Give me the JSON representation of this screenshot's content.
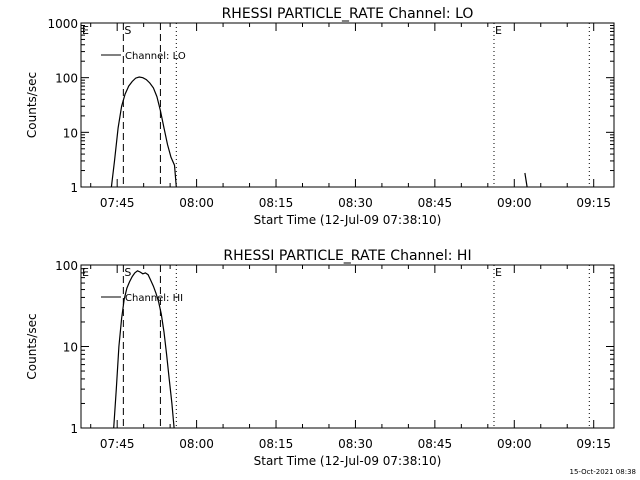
{
  "footer_timestamp": "15-Oct-2021 08:38",
  "chart_data": [
    {
      "type": "line",
      "title": "RHESSI PARTICLE_RATE Channel: LO",
      "xlabel": "Start Time (12-Jul-09 07:38:10)",
      "ylabel": "Counts/sec",
      "yscale": "log",
      "ylim": [
        1,
        1000
      ],
      "xlim": [
        "07:38:10",
        "09:18:50"
      ],
      "yticks": [
        "1",
        "10",
        "100",
        "1000"
      ],
      "xticks": [
        "07:45",
        "08:00",
        "08:15",
        "08:30",
        "08:45",
        "09:00",
        "09:15"
      ],
      "legend": {
        "label": "Channel: LO",
        "placement": "top-left"
      },
      "markers": [
        {
          "label": "E",
          "time": "07:38:10",
          "style": "dotted"
        },
        {
          "label": "S",
          "time": "07:46:10",
          "style": "dashed"
        },
        {
          "label": "",
          "time": "07:53:10",
          "style": "dashed"
        },
        {
          "label": "",
          "time": "07:56:10",
          "style": "dotted"
        },
        {
          "label": "E",
          "time": "08:56:10",
          "style": "dotted"
        },
        {
          "label": "",
          "time": "09:14:10",
          "style": "dotted"
        }
      ],
      "series": [
        {
          "name": "Channel: LO",
          "x": [
            "07:43:55",
            "07:44:30",
            "07:45:10",
            "07:45:50",
            "07:46:30",
            "07:47:10",
            "07:47:50",
            "07:48:30",
            "07:49:10",
            "07:49:50",
            "07:50:30",
            "07:51:10",
            "07:51:50",
            "07:52:30",
            "07:53:10",
            "07:53:50",
            "07:54:30",
            "07:55:10",
            "07:55:50",
            "07:56:10"
          ],
          "y": [
            1,
            3,
            12,
            30,
            50,
            70,
            85,
            98,
            103,
            100,
            92,
            80,
            65,
            45,
            25,
            12,
            6,
            3.5,
            2.5,
            1
          ]
        },
        {
          "name": "",
          "x": [
            "09:02:00",
            "09:02:25"
          ],
          "y": [
            1.8,
            1
          ]
        }
      ]
    },
    {
      "type": "line",
      "title": "RHESSI PARTICLE_RATE Channel: HI",
      "xlabel": "Start Time (12-Jul-09 07:38:10)",
      "ylabel": "Counts/sec",
      "yscale": "log",
      "ylim": [
        1,
        100
      ],
      "xlim": [
        "07:38:10",
        "09:18:50"
      ],
      "yticks": [
        "1",
        "10",
        "100"
      ],
      "xticks": [
        "07:45",
        "08:00",
        "08:15",
        "08:30",
        "08:45",
        "09:00",
        "09:15"
      ],
      "legend": {
        "label": "Channel: HI",
        "placement": "top-left"
      },
      "markers": [
        {
          "label": "E",
          "time": "07:38:10",
          "style": "dotted"
        },
        {
          "label": "S",
          "time": "07:46:10",
          "style": "dashed"
        },
        {
          "label": "",
          "time": "07:53:10",
          "style": "dashed"
        },
        {
          "label": "",
          "time": "07:56:10",
          "style": "dotted"
        },
        {
          "label": "E",
          "time": "08:56:10",
          "style": "dotted"
        },
        {
          "label": "",
          "time": "09:14:10",
          "style": "dotted"
        }
      ],
      "series": [
        {
          "name": "Channel: HI",
          "x": [
            "07:44:20",
            "07:44:50",
            "07:45:20",
            "07:45:50",
            "07:46:20",
            "07:46:50",
            "07:47:20",
            "07:47:50",
            "07:48:20",
            "07:48:50",
            "07:49:20",
            "07:49:50",
            "07:50:20",
            "07:50:50",
            "07:51:20",
            "07:51:50",
            "07:52:20",
            "07:52:50",
            "07:53:20",
            "07:53:50",
            "07:54:20",
            "07:54:50",
            "07:55:20",
            "07:55:45"
          ],
          "y": [
            1,
            3,
            10,
            22,
            38,
            52,
            62,
            72,
            80,
            85,
            82,
            78,
            80,
            76,
            65,
            55,
            45,
            35,
            25,
            15,
            8,
            4,
            2,
            1
          ]
        }
      ]
    }
  ]
}
